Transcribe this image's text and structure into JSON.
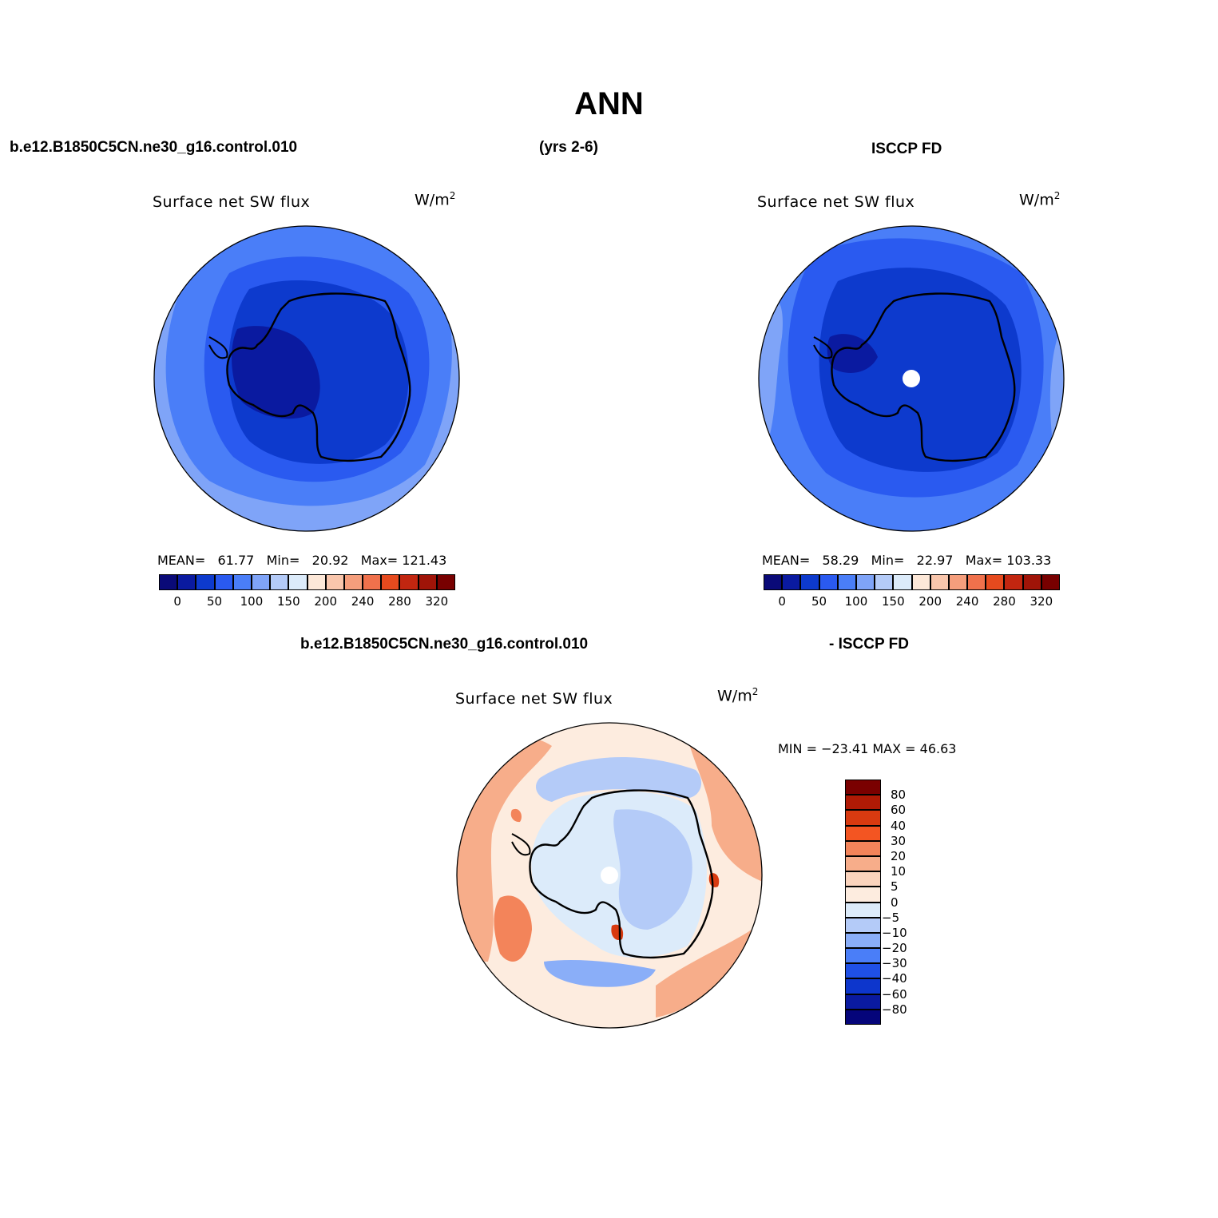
{
  "page_title": "ANN",
  "top_left_case": "b.e12.B1850C5CN.ne30_g16.control.010",
  "top_years": "(yrs 2-6)",
  "top_right_obs": "ISCCP FD",
  "bottom_case": "b.e12.B1850C5CN.ne30_g16.control.010",
  "bottom_obs": "- ISCCP FD",
  "units_prefix": "W/m",
  "units_power": "2",
  "variable": "Surface net SW flux",
  "panel1": {
    "mean_label": "MEAN=",
    "mean": "61.77",
    "min_label": "Min=",
    "min": "20.92",
    "max_label": "Max=",
    "max": "121.43"
  },
  "panel2": {
    "mean_label": "MEAN=",
    "mean": "58.29",
    "min_label": "Min=",
    "min": "22.97",
    "max_label": "Max=",
    "max": "103.33"
  },
  "panel3": {
    "minmax_text": "MIN = −23.41 MAX =  46.63"
  },
  "abs_colorbar": {
    "colors": [
      "#0a0a78",
      "#0a1aa0",
      "#0d3acd",
      "#2a5af0",
      "#4a7ef8",
      "#7fa4f8",
      "#b4cbf8",
      "#dcebfa",
      "#fde8d8",
      "#f9c6ac",
      "#f59e7c",
      "#f0714c",
      "#e64a1e",
      "#c22610",
      "#a01408",
      "#780000"
    ],
    "labels": [
      "0",
      "50",
      "100",
      "150",
      "200",
      "240",
      "280",
      "320"
    ]
  },
  "diff_colorbar": {
    "colors": [
      "#7a0000",
      "#b01a05",
      "#d83a10",
      "#f35522",
      "#f3845a",
      "#f7ad8a",
      "#fbd4bd",
      "#fdecdf",
      "#dcebfa",
      "#b4cbf8",
      "#8aaef8",
      "#4a7ef8",
      "#1f50e6",
      "#0d36cc",
      "#0a1aa0",
      "#05057a"
    ],
    "labels": [
      "80",
      "60",
      "40",
      "30",
      "20",
      "10",
      "5",
      "0",
      "−5",
      "−10",
      "−20",
      "−30",
      "−40",
      "−60",
      "−80"
    ]
  },
  "map_colors": {
    "abs_ring1": "#7fa4f8",
    "abs_ring2": "#4a7ef8",
    "abs_ring3": "#2a5af0",
    "abs_ring4": "#0d3acd",
    "abs_ring5": "#0a1aa0",
    "diff_bg": "#fdecdf",
    "diff_pos": "#f7ad8a",
    "diff_pos2": "#f3845a",
    "diff_strong": "#d83a10",
    "diff_neg1": "#dcebfa",
    "diff_neg2": "#b4cbf8",
    "diff_neg3": "#8aaef8",
    "coast": "#000000",
    "missing": "#ffffff"
  }
}
